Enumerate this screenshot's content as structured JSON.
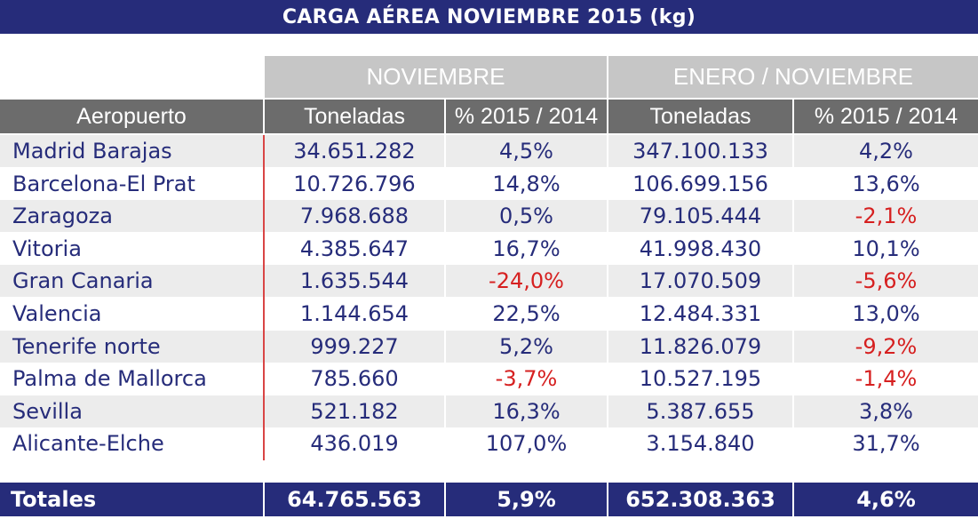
{
  "title": "CARGA AÉREA NOVIEMBRE 2015 (kg)",
  "groups": {
    "noviembre": "NOVIEMBRE",
    "enero_noviembre": "ENERO / NOVIEMBRE"
  },
  "columns": {
    "aeropuerto": "Aeropuerto",
    "toneladas_1": "Toneladas",
    "pct_1": "% 2015 / 2014",
    "toneladas_2": "Toneladas",
    "pct_2": "% 2015 / 2014"
  },
  "colors": {
    "header_bg": "#262c7a",
    "text": "#262c7a",
    "negative": "#d62020",
    "accent_line": "#d94545"
  },
  "rows": [
    {
      "airport": "Madrid Barajas",
      "nov_t": "34.651.282",
      "nov_pct": "4,5%",
      "nov_neg": false,
      "ytd_t": "347.100.133",
      "ytd_pct": "4,2%",
      "ytd_neg": false
    },
    {
      "airport": "Barcelona-El Prat",
      "nov_t": "10.726.796",
      "nov_pct": "14,8%",
      "nov_neg": false,
      "ytd_t": "106.699.156",
      "ytd_pct": "13,6%",
      "ytd_neg": false
    },
    {
      "airport": "Zaragoza",
      "nov_t": "7.968.688",
      "nov_pct": "0,5%",
      "nov_neg": false,
      "ytd_t": "79.105.444",
      "ytd_pct": "-2,1%",
      "ytd_neg": true
    },
    {
      "airport": "Vitoria",
      "nov_t": "4.385.647",
      "nov_pct": "16,7%",
      "nov_neg": false,
      "ytd_t": "41.998.430",
      "ytd_pct": "10,1%",
      "ytd_neg": false
    },
    {
      "airport": "Gran Canaria",
      "nov_t": "1.635.544",
      "nov_pct": "-24,0%",
      "nov_neg": true,
      "ytd_t": "17.070.509",
      "ytd_pct": "-5,6%",
      "ytd_neg": true
    },
    {
      "airport": "Valencia",
      "nov_t": "1.144.654",
      "nov_pct": "22,5%",
      "nov_neg": false,
      "ytd_t": "12.484.331",
      "ytd_pct": "13,0%",
      "ytd_neg": false
    },
    {
      "airport": "Tenerife norte",
      "nov_t": "999.227",
      "nov_pct": "5,2%",
      "nov_neg": false,
      "ytd_t": "11.826.079",
      "ytd_pct": "-9,2%",
      "ytd_neg": true
    },
    {
      "airport": "Palma de Mallorca",
      "nov_t": "785.660",
      "nov_pct": "-3,7%",
      "nov_neg": true,
      "ytd_t": "10.527.195",
      "ytd_pct": "-1,4%",
      "ytd_neg": true
    },
    {
      "airport": "Sevilla",
      "nov_t": "521.182",
      "nov_pct": "16,3%",
      "nov_neg": false,
      "ytd_t": "5.387.655",
      "ytd_pct": "3,8%",
      "ytd_neg": false
    },
    {
      "airport": "Alicante-Elche",
      "nov_t": "436.019",
      "nov_pct": "107,0%",
      "nov_neg": false,
      "ytd_t": "3.154.840",
      "ytd_pct": "31,7%",
      "ytd_neg": false
    }
  ],
  "totals": {
    "label": "Totales",
    "nov_t": "64.765.563",
    "nov_pct": "5,9%",
    "ytd_t": "652.308.363",
    "ytd_pct": "4,6%"
  }
}
